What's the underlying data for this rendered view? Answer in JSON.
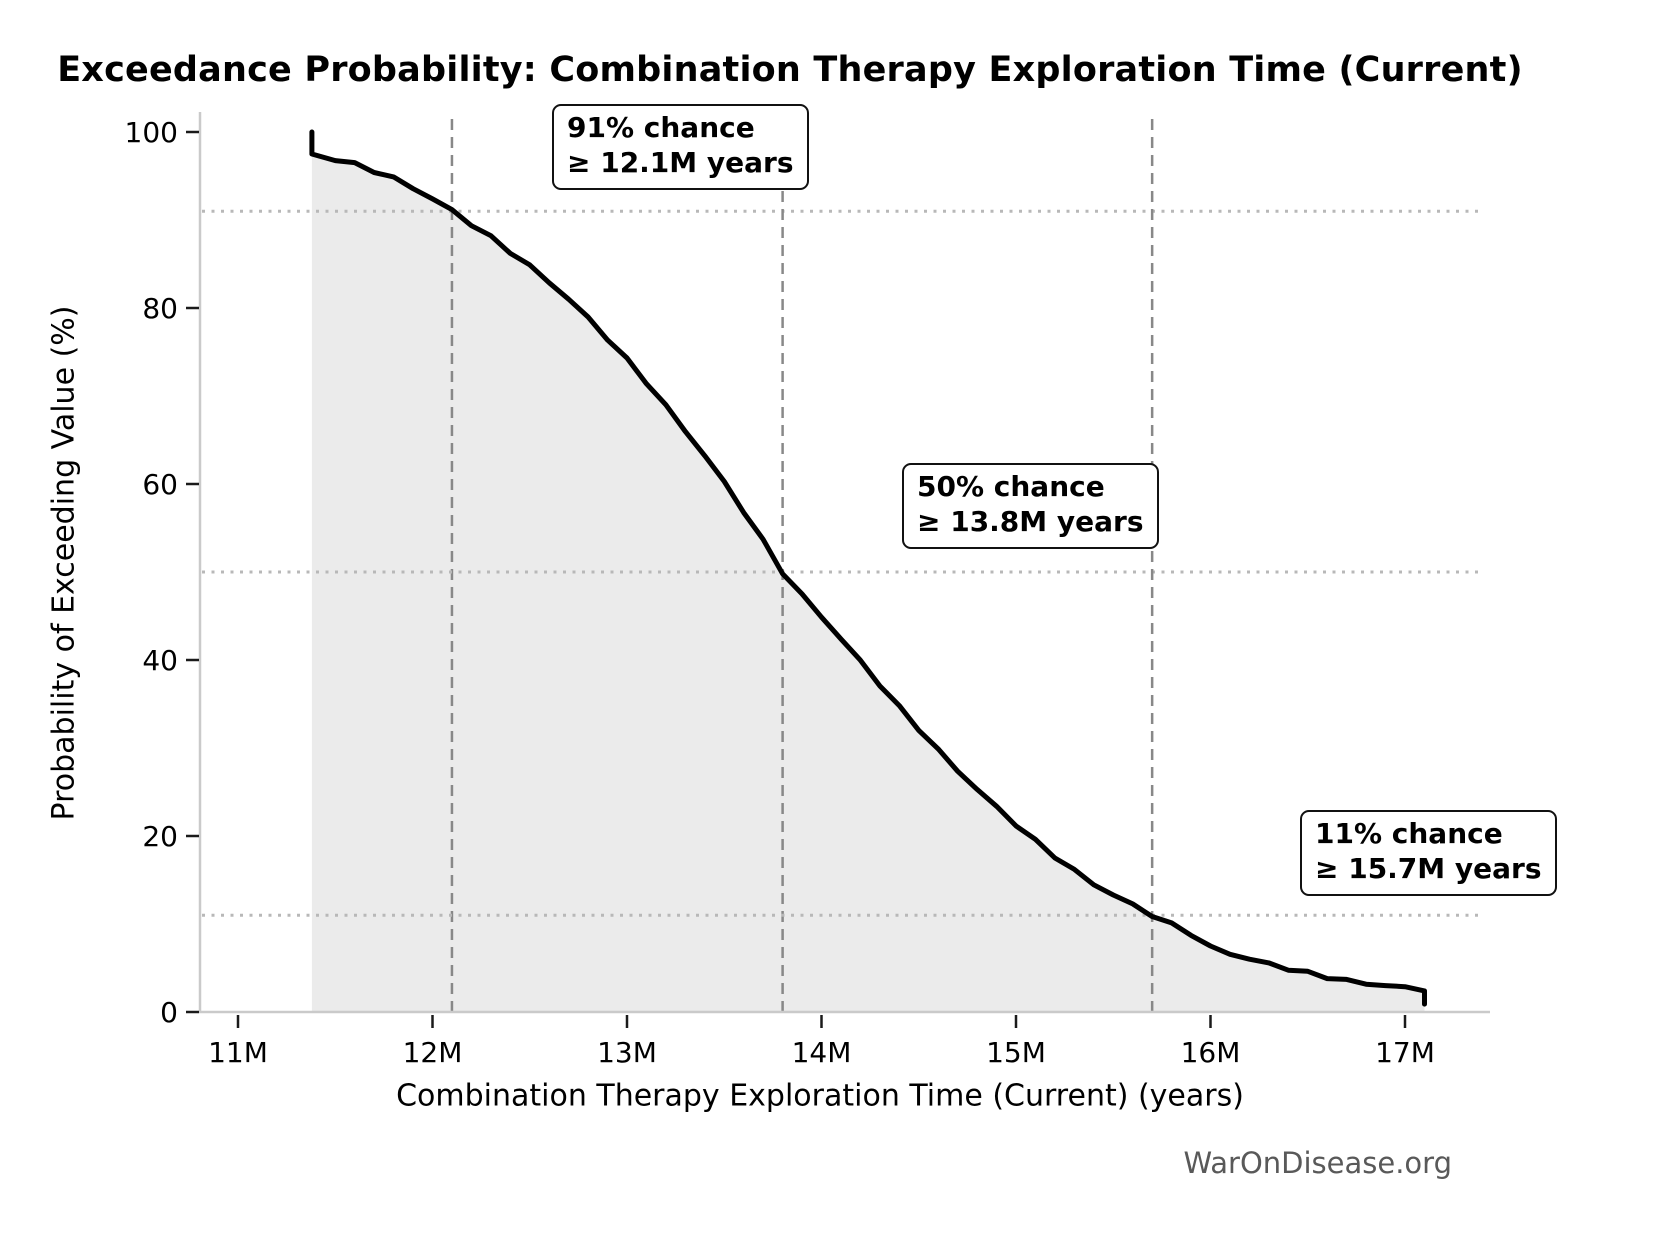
{
  "title": "Exceedance Probability: Combination Therapy Exploration Time (Current)",
  "watermark": "WarOnDisease.org",
  "chart_data": {
    "type": "line",
    "title": "Exceedance Probability: Combination Therapy Exploration Time (Current)",
    "xlabel": "Combination Therapy Exploration Time (Current) (years)",
    "ylabel": "Probability of Exceeding Value (%)",
    "x_unit": "millions of years",
    "xlim": [
      10.8,
      17.45
    ],
    "ylim": [
      0,
      100
    ],
    "grid": "dotted horizontal reference lines at marker probabilities only",
    "legend": "none",
    "x_ticks": [
      11,
      12,
      13,
      14,
      15,
      16,
      17
    ],
    "x_tick_labels": [
      "11M",
      "12M",
      "13M",
      "14M",
      "15M",
      "16M",
      "17M"
    ],
    "y_ticks": [
      0,
      20,
      40,
      60,
      80,
      100
    ],
    "y_tick_labels": [
      "0",
      "20",
      "40",
      "60",
      "80",
      "100"
    ],
    "series": [
      {
        "name": "Exceedance probability (CCDF)",
        "style": "thick black step-like curve with light gray fill to zero",
        "points": [
          [
            11.38,
            100
          ],
          [
            11.38,
            97.5
          ],
          [
            11.5,
            96.9
          ],
          [
            11.6,
            96.3
          ],
          [
            11.7,
            95.6
          ],
          [
            11.8,
            94.8
          ],
          [
            11.9,
            93.7
          ],
          [
            12.0,
            92.4
          ],
          [
            12.1,
            91.0
          ],
          [
            12.2,
            89.5
          ],
          [
            12.3,
            88.0
          ],
          [
            12.4,
            86.4
          ],
          [
            12.5,
            84.8
          ],
          [
            12.6,
            83.0
          ],
          [
            12.7,
            81.0
          ],
          [
            12.8,
            78.8
          ],
          [
            12.9,
            76.5
          ],
          [
            13.0,
            74.1
          ],
          [
            13.1,
            71.6
          ],
          [
            13.2,
            68.9
          ],
          [
            13.3,
            66.1
          ],
          [
            13.4,
            63.2
          ],
          [
            13.5,
            60.1
          ],
          [
            13.6,
            56.9
          ],
          [
            13.7,
            53.5
          ],
          [
            13.8,
            50.0
          ],
          [
            13.9,
            47.4
          ],
          [
            14.0,
            45.0
          ],
          [
            14.1,
            42.4
          ],
          [
            14.2,
            39.8
          ],
          [
            14.3,
            37.2
          ],
          [
            14.4,
            34.6
          ],
          [
            14.5,
            32.2
          ],
          [
            14.6,
            29.8
          ],
          [
            14.7,
            27.5
          ],
          [
            14.8,
            25.3
          ],
          [
            14.9,
            23.2
          ],
          [
            15.0,
            21.3
          ],
          [
            15.1,
            19.4
          ],
          [
            15.2,
            17.7
          ],
          [
            15.3,
            16.1
          ],
          [
            15.4,
            14.6
          ],
          [
            15.5,
            13.3
          ],
          [
            15.6,
            12.1
          ],
          [
            15.7,
            11.0
          ],
          [
            15.8,
            9.9
          ],
          [
            15.9,
            8.9
          ],
          [
            16.0,
            7.4
          ],
          [
            16.1,
            6.7
          ],
          [
            16.2,
            6.0
          ],
          [
            16.3,
            5.4
          ],
          [
            16.4,
            4.9
          ],
          [
            16.5,
            4.4
          ],
          [
            16.6,
            4.0
          ],
          [
            16.7,
            3.6
          ],
          [
            16.8,
            3.3
          ],
          [
            16.9,
            3.0
          ],
          [
            17.0,
            2.7
          ],
          [
            17.1,
            2.4
          ],
          [
            17.1,
            0.9
          ]
        ]
      }
    ],
    "markers": [
      {
        "chance_pct": 91,
        "x_m_years": 12.1,
        "label_line1": "91% chance",
        "label_line2": "≥ 12.1M years"
      },
      {
        "chance_pct": 50,
        "x_m_years": 13.8,
        "label_line1": "50% chance",
        "label_line2": "≥ 13.8M years"
      },
      {
        "chance_pct": 11,
        "x_m_years": 15.7,
        "label_line1": "11% chance",
        "label_line2": "≥ 15.7M years"
      }
    ],
    "colors": {
      "line": "#000000",
      "fill": "#ebebeb",
      "dashed_marker_line": "#888888",
      "dotted_marker_line": "#b8b8b8",
      "spine": "#cacaca",
      "tick": "#1a1a1a",
      "watermark": "#595959"
    }
  }
}
